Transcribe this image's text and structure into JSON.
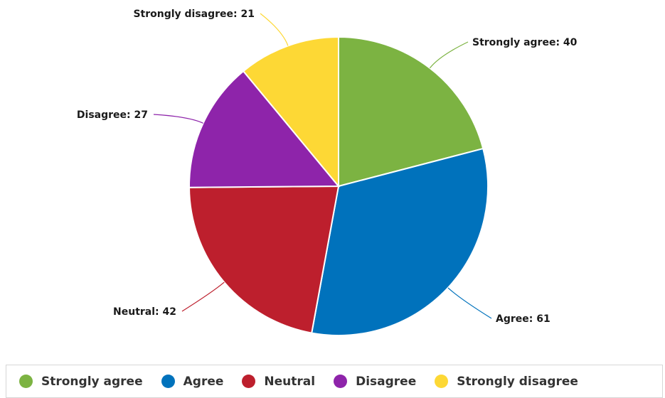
{
  "chart_data": {
    "type": "pie",
    "title": "",
    "slices": [
      {
        "label": "Strongly agree",
        "value": 40,
        "color": "#7cb342",
        "data_label": "Strongly agree: 40"
      },
      {
        "label": "Agree",
        "value": 61,
        "color": "#0072bc",
        "data_label": "Agree: 61"
      },
      {
        "label": "Neutral",
        "value": 42,
        "color": "#bd1f2d",
        "data_label": "Neutral: 42"
      },
      {
        "label": "Disagree",
        "value": 27,
        "color": "#8e24aa",
        "data_label": "Disagree: 27"
      },
      {
        "label": "Strongly disagree",
        "value": 21,
        "color": "#fdd835",
        "data_label": "Strongly disagree: 21"
      }
    ],
    "legend_position": "bottom"
  }
}
